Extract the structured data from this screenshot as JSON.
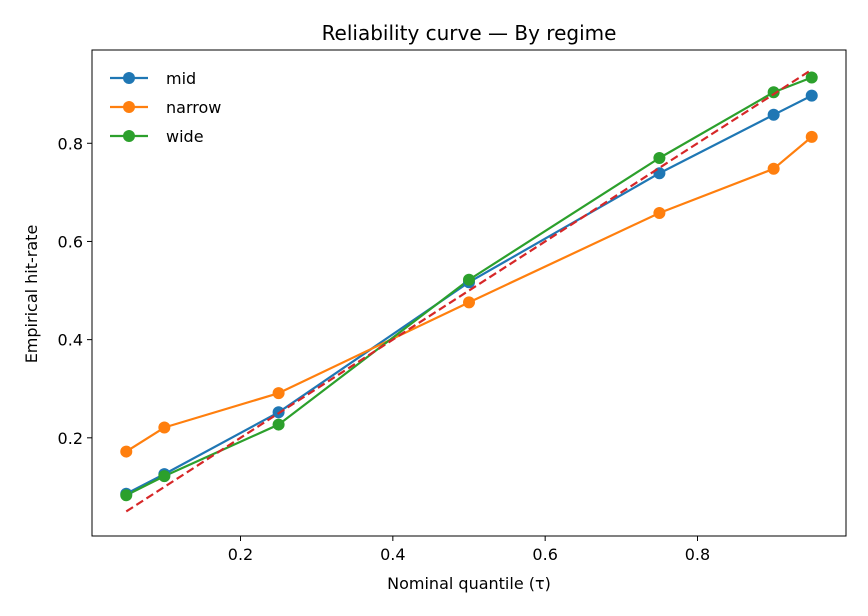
{
  "chart_data": {
    "type": "line",
    "title": "Reliability curve — By regime",
    "xlabel": "Nominal quantile (τ)",
    "ylabel": "Empirical hit-rate",
    "xlim": [
      0.005,
      0.995
    ],
    "ylim": [
      0.0,
      0.99
    ],
    "xticks": [
      0.2,
      0.4,
      0.6,
      0.8
    ],
    "xtick_labels": [
      "0.2",
      "0.4",
      "0.6",
      "0.8"
    ],
    "yticks": [
      0.2,
      0.4,
      0.6,
      0.8
    ],
    "ytick_labels": [
      "0.2",
      "0.4",
      "0.6",
      "0.8"
    ],
    "grid": false,
    "legend_position": "top-left",
    "x": [
      0.05,
      0.1,
      0.25,
      0.5,
      0.75,
      0.9,
      0.95
    ],
    "series": [
      {
        "name": "mid",
        "color": "#1f77b4",
        "marker": "circle",
        "values": [
          0.086,
          0.126,
          0.252,
          0.517,
          0.739,
          0.858,
          0.897
        ]
      },
      {
        "name": "narrow",
        "color": "#ff7f0e",
        "marker": "circle",
        "values": [
          0.172,
          0.221,
          0.291,
          0.476,
          0.658,
          0.748,
          0.813
        ]
      },
      {
        "name": "wide",
        "color": "#2ca02c",
        "marker": "circle",
        "values": [
          0.083,
          0.122,
          0.227,
          0.522,
          0.77,
          0.904,
          0.934
        ]
      }
    ],
    "reference_line": {
      "color": "#d62728",
      "style": "dashed",
      "x": [
        0.05,
        0.95
      ],
      "y": [
        0.05,
        0.95
      ]
    }
  }
}
